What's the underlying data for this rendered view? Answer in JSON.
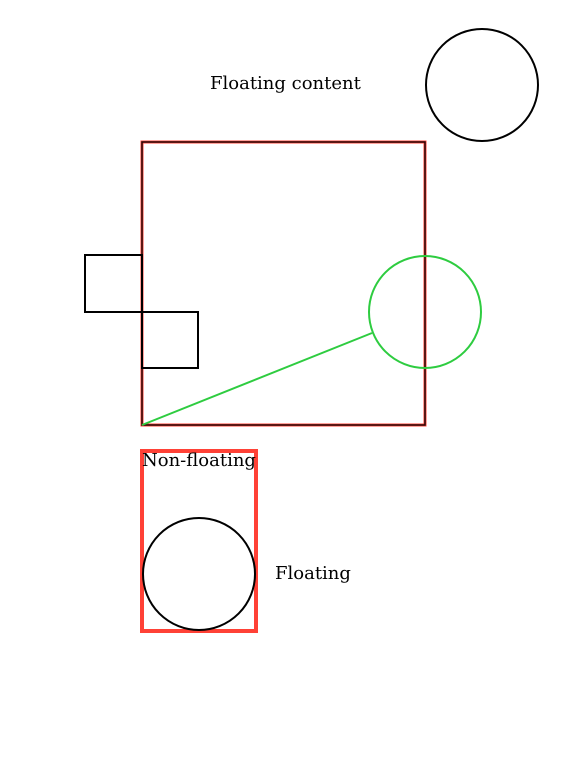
{
  "labels": {
    "floating_content": "Floating content",
    "non_floating": "Non-floating",
    "floating": "Floating"
  },
  "colors": {
    "black": "#000000",
    "red": "#ff4136",
    "green": "#2ecc40",
    "dark_red": "#8b0000"
  }
}
